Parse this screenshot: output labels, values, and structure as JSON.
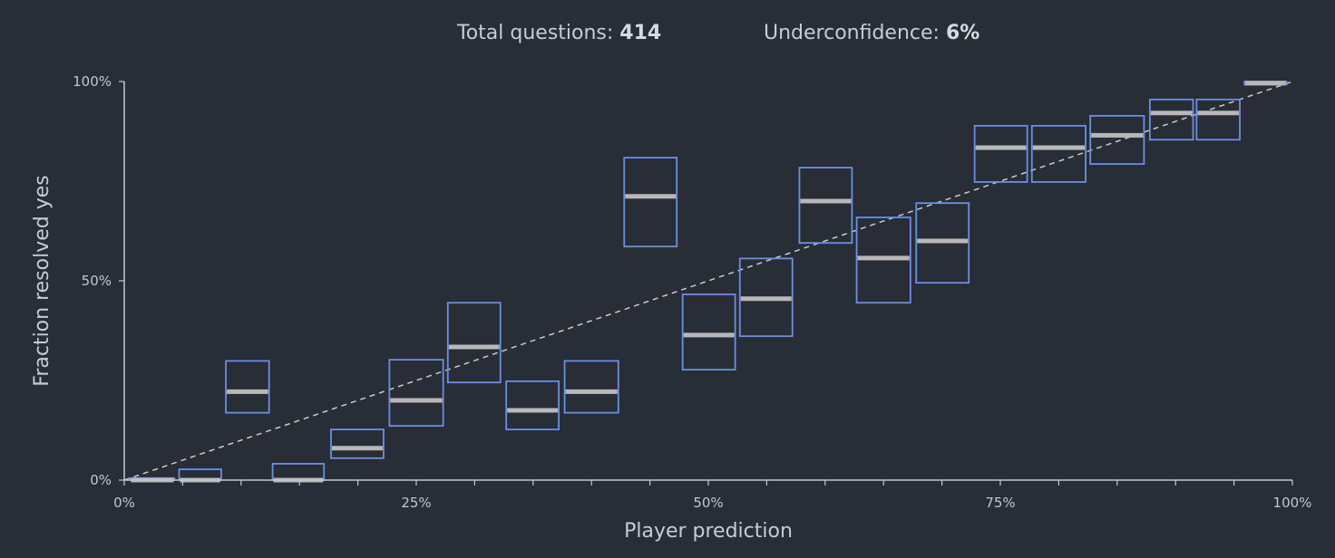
{
  "stats": {
    "total_label": "Total questions:",
    "total_value": "414",
    "under_label": "Underconfidence:",
    "under_value": "6%"
  },
  "colors": {
    "background": "#282d36",
    "box_stroke": "#6b8fe6",
    "median_line": "#b8b8b8",
    "axis": "#c2c7cf",
    "diagonal": "#c8ccd2"
  },
  "chart_data": {
    "type": "box",
    "xlabel": "Player prediction",
    "ylabel": "Fraction resolved yes",
    "xlim": [
      0,
      100
    ],
    "ylim": [
      0,
      100
    ],
    "x_ticks": [
      "0%",
      "25%",
      "50%",
      "75%",
      "100%"
    ],
    "y_ticks": [
      "0%",
      "50%",
      "100%"
    ],
    "reference_line": "diagonal y = x (dashed)",
    "grid": false,
    "bins": [
      {
        "x0": 0.5,
        "x1": 4.3,
        "low": 0,
        "mid": 0,
        "high": 0.5
      },
      {
        "x0": 4.7,
        "x1": 8.3,
        "low": 0,
        "mid": 0,
        "high": 2.7
      },
      {
        "x0": 8.7,
        "x1": 12.4,
        "low": 16.9,
        "mid": 22.2,
        "high": 29.9
      },
      {
        "x0": 12.7,
        "x1": 17.1,
        "low": 0,
        "mid": 0,
        "high": 4.1
      },
      {
        "x0": 17.7,
        "x1": 22.2,
        "low": 5.5,
        "mid": 8,
        "high": 12.7
      },
      {
        "x0": 22.7,
        "x1": 27.3,
        "low": 13.6,
        "mid": 20,
        "high": 30.2
      },
      {
        "x0": 27.7,
        "x1": 32.2,
        "low": 24.5,
        "mid": 33.4,
        "high": 44.5
      },
      {
        "x0": 32.7,
        "x1": 37.2,
        "low": 12.7,
        "mid": 17.5,
        "high": 24.8
      },
      {
        "x0": 37.7,
        "x1": 42.3,
        "low": 16.9,
        "mid": 22.2,
        "high": 29.9
      },
      {
        "x0": 42.8,
        "x1": 47.3,
        "low": 58.6,
        "mid": 71.2,
        "high": 80.9
      },
      {
        "x0": 47.8,
        "x1": 52.3,
        "low": 27.7,
        "mid": 36.4,
        "high": 46.6
      },
      {
        "x0": 52.7,
        "x1": 57.2,
        "low": 36.1,
        "mid": 45.5,
        "high": 55.6
      },
      {
        "x0": 57.8,
        "x1": 62.3,
        "low": 59.5,
        "mid": 70,
        "high": 78.4
      },
      {
        "x0": 62.7,
        "x1": 67.3,
        "low": 44.5,
        "mid": 55.7,
        "high": 65.9
      },
      {
        "x0": 67.8,
        "x1": 72.3,
        "low": 49.5,
        "mid": 60,
        "high": 69.5
      },
      {
        "x0": 72.8,
        "x1": 77.3,
        "low": 74.8,
        "mid": 83.4,
        "high": 88.9
      },
      {
        "x0": 77.7,
        "x1": 82.3,
        "low": 74.8,
        "mid": 83.4,
        "high": 88.9
      },
      {
        "x0": 82.7,
        "x1": 87.3,
        "low": 79.3,
        "mid": 86.5,
        "high": 91.4
      },
      {
        "x0": 87.8,
        "x1": 91.5,
        "low": 85.4,
        "mid": 92.1,
        "high": 95.5
      },
      {
        "x0": 91.8,
        "x1": 95.5,
        "low": 85.4,
        "mid": 92.1,
        "high": 95.5
      },
      {
        "x0": 95.9,
        "x1": 99.5,
        "low": 99.2,
        "mid": 99.6,
        "high": 100
      }
    ]
  }
}
